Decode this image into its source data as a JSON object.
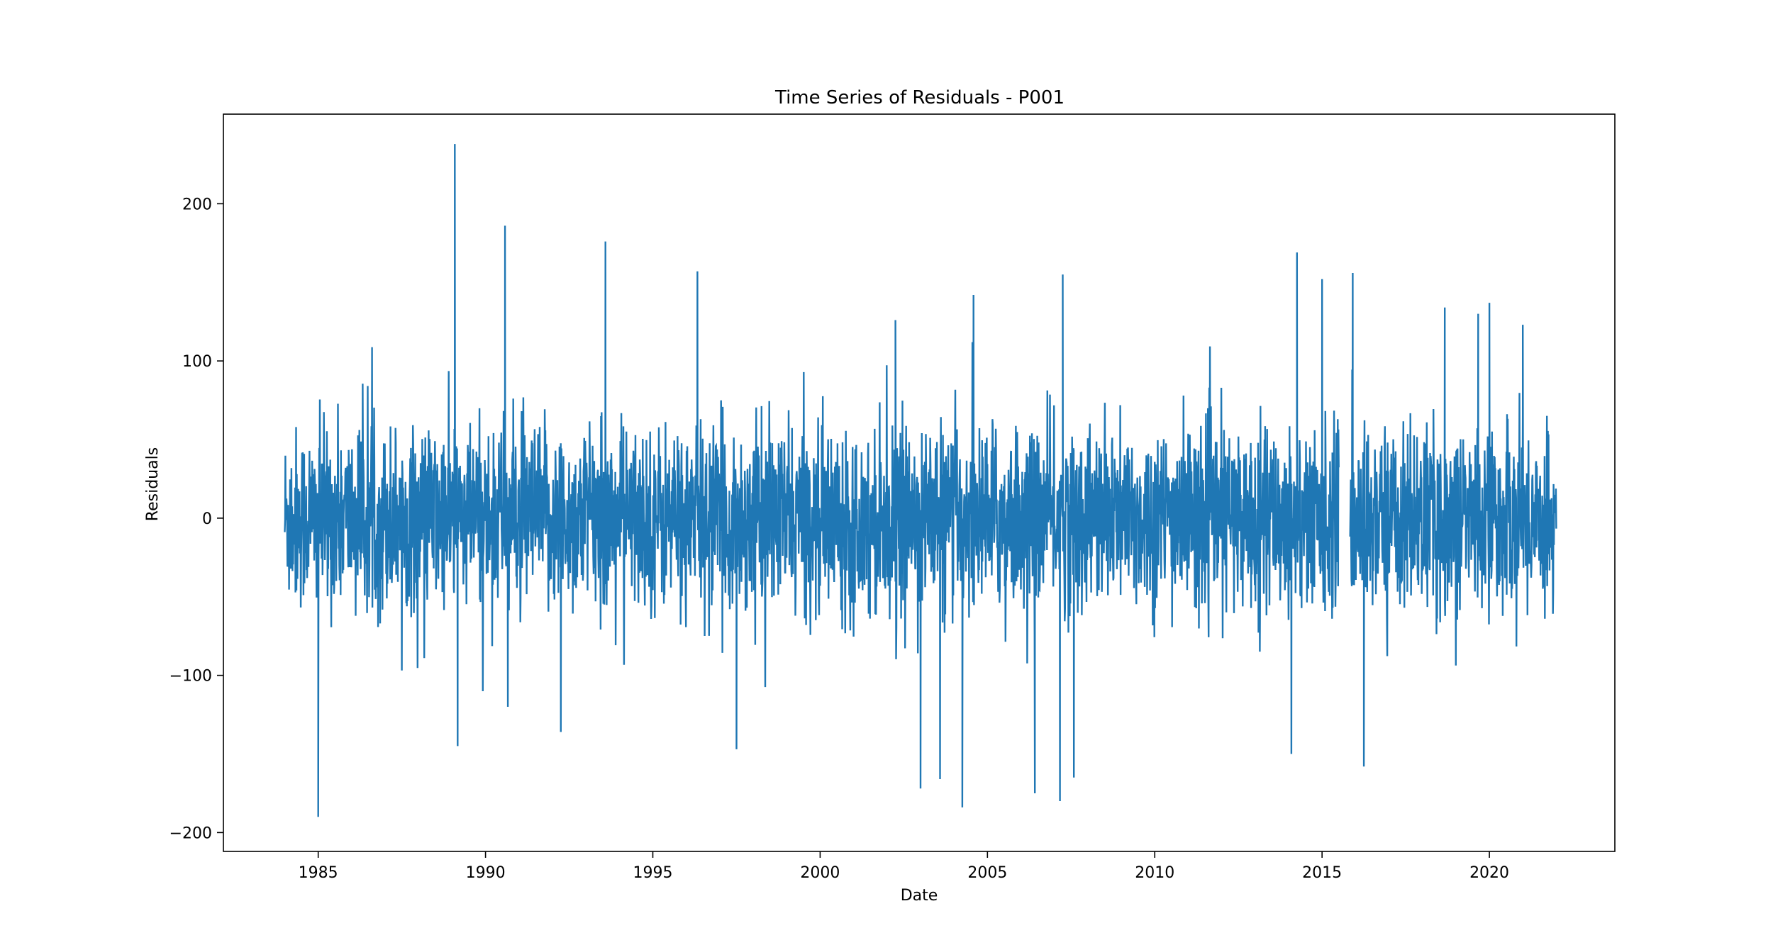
{
  "chart_data": {
    "type": "line",
    "title": "Time Series of Residuals - P001",
    "xlabel": "Date",
    "ylabel": "Residuals",
    "xlim": [
      "1982-03",
      "2023-10"
    ],
    "ylim": [
      -212,
      257
    ],
    "x_ticks": [
      "1985",
      "1990",
      "1995",
      "2000",
      "2005",
      "2010",
      "2015",
      "2020"
    ],
    "y_ticks": [
      -200,
      -100,
      0,
      100,
      200
    ],
    "y_tick_labels": [
      "−200",
      "−100",
      "0",
      "100",
      "200"
    ],
    "grid": false,
    "legend": "none",
    "series": [
      {
        "color": "#1f77b4",
        "x_range": [
          "1984-01-01",
          "2021-12-31"
        ],
        "gaps": [
          [
            "2015-07",
            "2015-11"
          ]
        ],
        "typical_band": [
          -60,
          60
        ],
        "spikes": [
          {
            "date": "1985-01",
            "value": -190
          },
          {
            "date": "1989-02",
            "value": 238
          },
          {
            "date": "1989-03",
            "value": -145
          },
          {
            "date": "1990-08",
            "value": 186
          },
          {
            "date": "1990-09",
            "value": -120
          },
          {
            "date": "1992-04",
            "value": -136
          },
          {
            "date": "1993-08",
            "value": 176
          },
          {
            "date": "1996-05",
            "value": 157
          },
          {
            "date": "1997-07",
            "value": -147
          },
          {
            "date": "2002-04",
            "value": 126
          },
          {
            "date": "2003-01",
            "value": -172
          },
          {
            "date": "2003-08",
            "value": -166
          },
          {
            "date": "2004-04",
            "value": -184
          },
          {
            "date": "2004-08",
            "value": 142
          },
          {
            "date": "2006-06",
            "value": -175
          },
          {
            "date": "2007-04",
            "value": 155
          },
          {
            "date": "2007-03",
            "value": -180
          },
          {
            "date": "2007-08",
            "value": -165
          },
          {
            "date": "2014-02",
            "value": -150
          },
          {
            "date": "2014-04",
            "value": 169
          },
          {
            "date": "2015-01",
            "value": 152
          },
          {
            "date": "2015-12",
            "value": 156
          },
          {
            "date": "2016-04",
            "value": -158
          },
          {
            "date": "2018-09",
            "value": 134
          },
          {
            "date": "2019-09",
            "value": 130
          },
          {
            "date": "2020-01",
            "value": 137
          },
          {
            "date": "2021-01",
            "value": 123
          }
        ]
      }
    ]
  }
}
